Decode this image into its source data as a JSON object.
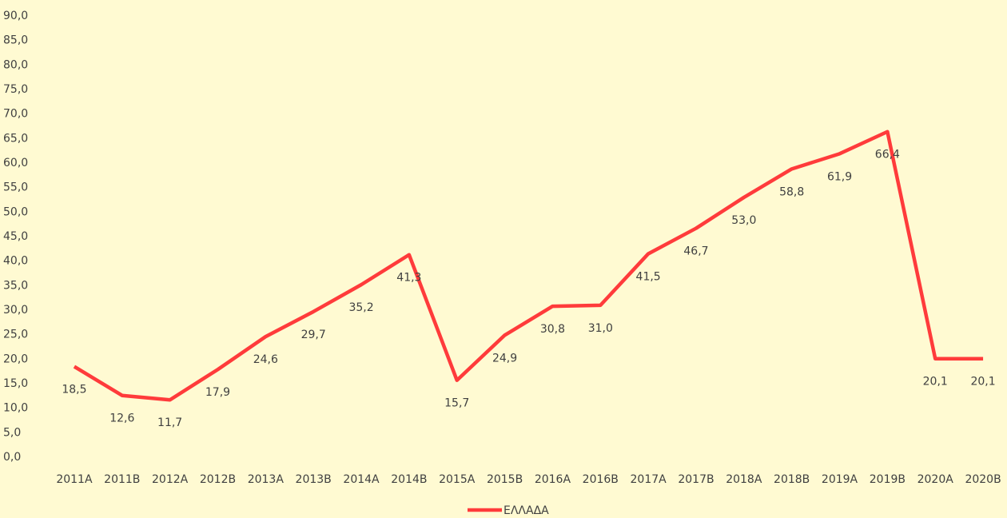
{
  "chart_data": {
    "type": "line",
    "categories": [
      "2011Α",
      "2011Β",
      "2012Α",
      "2012Β",
      "2013Α",
      "2013Β",
      "2014Α",
      "2014Β",
      "2015Α",
      "2015Β",
      "2016Α",
      "2016Β",
      "2017Α",
      "2017Β",
      "2018Α",
      "2018Β",
      "2019Α",
      "2019Β",
      "2020Α",
      "2020Β"
    ],
    "series": [
      {
        "name": "ΕΛΛΑΔΑ",
        "color": "#ff3b3b",
        "values": [
          18.5,
          12.6,
          11.7,
          17.9,
          24.6,
          29.7,
          35.2,
          41.3,
          15.7,
          24.9,
          30.8,
          31.0,
          41.5,
          46.7,
          53.0,
          58.8,
          61.9,
          66.4,
          20.1,
          20.1
        ],
        "value_labels": [
          "18,5",
          "12,6",
          "11,7",
          "17,9",
          "24,6",
          "29,7",
          "35,2",
          "41,3",
          "15,7",
          "24,9",
          "30,8",
          "31,0",
          "41,5",
          "46,7",
          "53,0",
          "58,8",
          "61,9",
          "66,4",
          "20,1",
          "20,1"
        ]
      }
    ],
    "ylim": [
      0,
      90
    ],
    "yticks": [
      {
        "value": 0,
        "label": "0,0"
      },
      {
        "value": 5,
        "label": "5,0"
      },
      {
        "value": 10,
        "label": "10,0"
      },
      {
        "value": 15,
        "label": "15,0"
      },
      {
        "value": 20,
        "label": "20,0"
      },
      {
        "value": 25,
        "label": "25,0"
      },
      {
        "value": 30,
        "label": "30,0"
      },
      {
        "value": 35,
        "label": "35,0"
      },
      {
        "value": 40,
        "label": "40,0"
      },
      {
        "value": 45,
        "label": "45,0"
      },
      {
        "value": 50,
        "label": "50,0"
      },
      {
        "value": 55,
        "label": "55,0"
      },
      {
        "value": 60,
        "label": "60,0"
      },
      {
        "value": 65,
        "label": "65,0"
      },
      {
        "value": 70,
        "label": "70,0"
      },
      {
        "value": 75,
        "label": "75,0"
      },
      {
        "value": 80,
        "label": "80,0"
      },
      {
        "value": 85,
        "label": "85,0"
      },
      {
        "value": 90,
        "label": "90,0"
      }
    ],
    "grid": false,
    "legend": "bottom"
  }
}
